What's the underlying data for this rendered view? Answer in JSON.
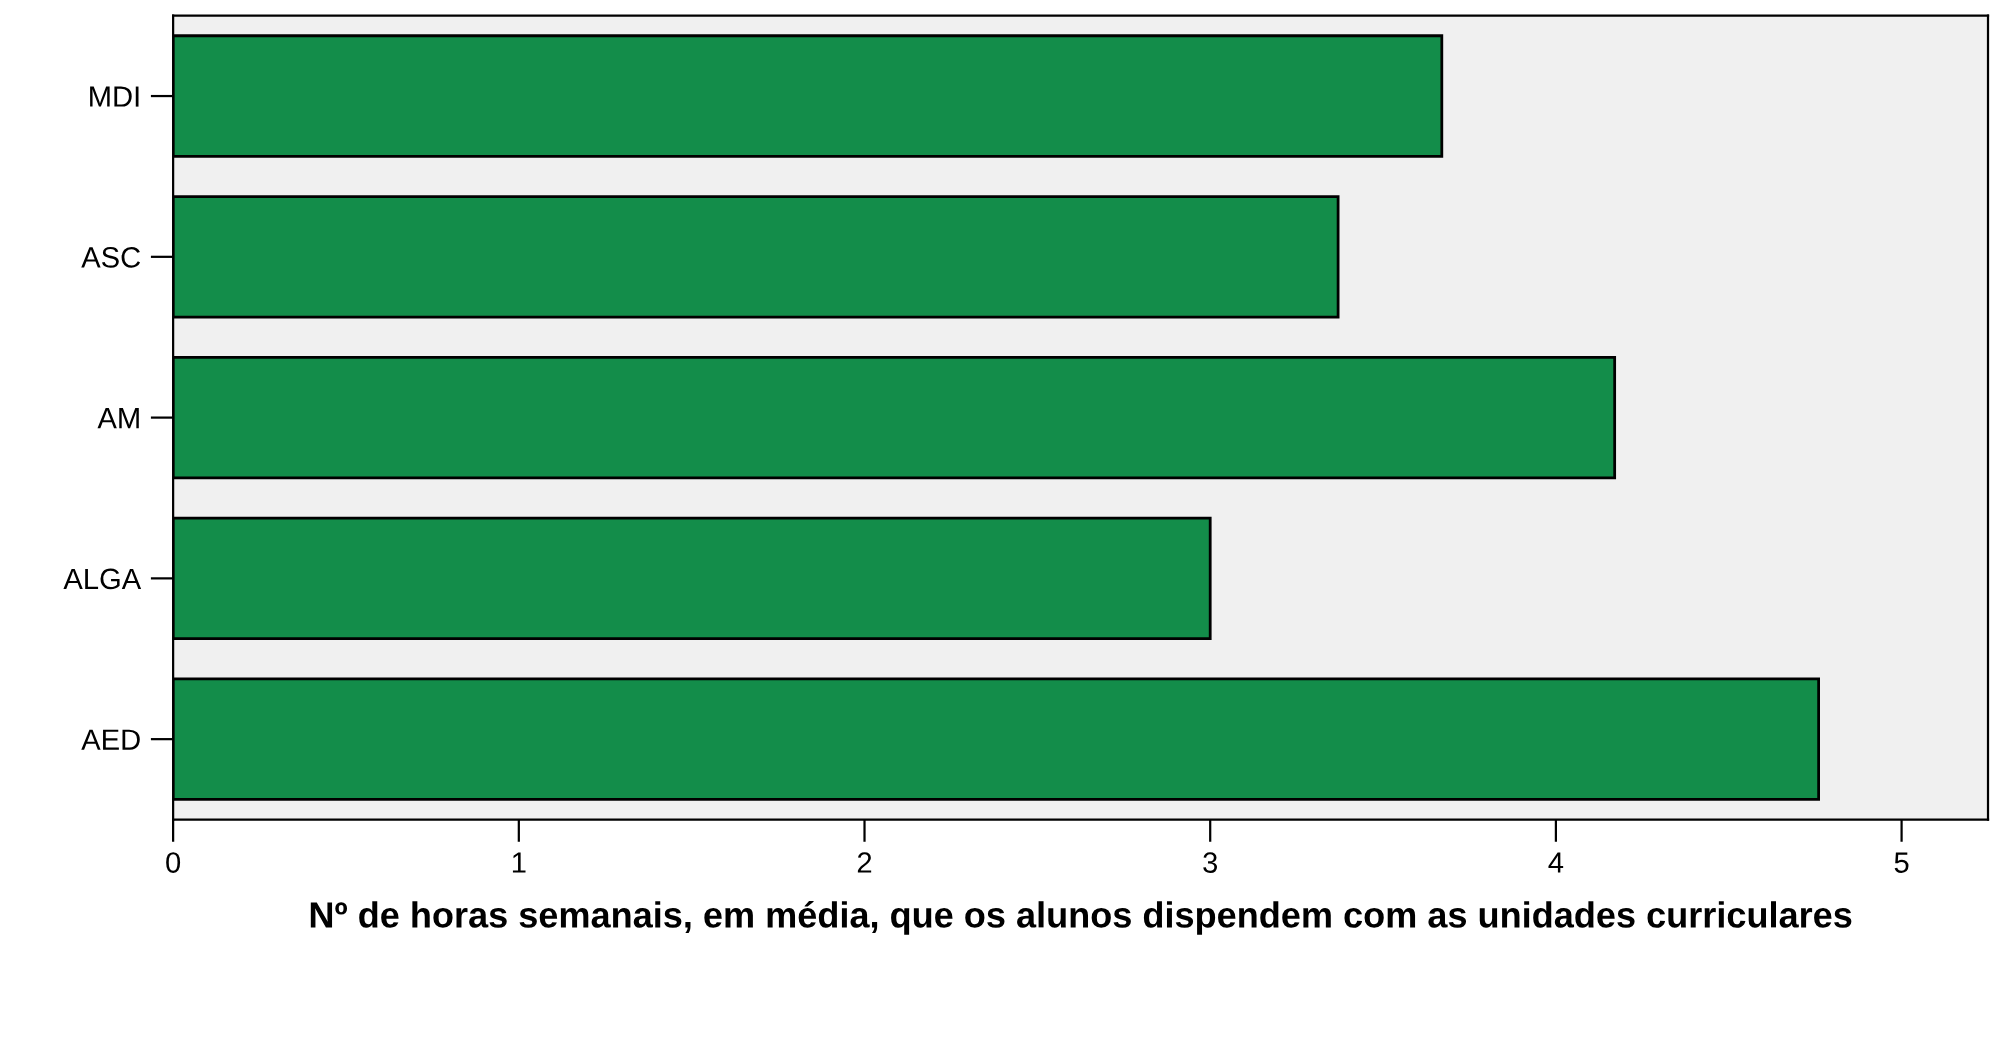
{
  "chart_data": {
    "type": "bar",
    "orientation": "horizontal",
    "xlabel": "Nº de horas semanais, em média, que os alunos dispendem com as unidades curriculares",
    "categories": [
      "MDI",
      "ASC",
      "AM",
      "ALGA",
      "AED"
    ],
    "values": [
      3.67,
      3.37,
      4.17,
      3.0,
      4.76
    ],
    "color": "#138d4a",
    "xlim": [
      0,
      5.25
    ],
    "xticks": [
      0,
      1,
      2,
      3,
      4,
      5
    ],
    "grid": false
  }
}
